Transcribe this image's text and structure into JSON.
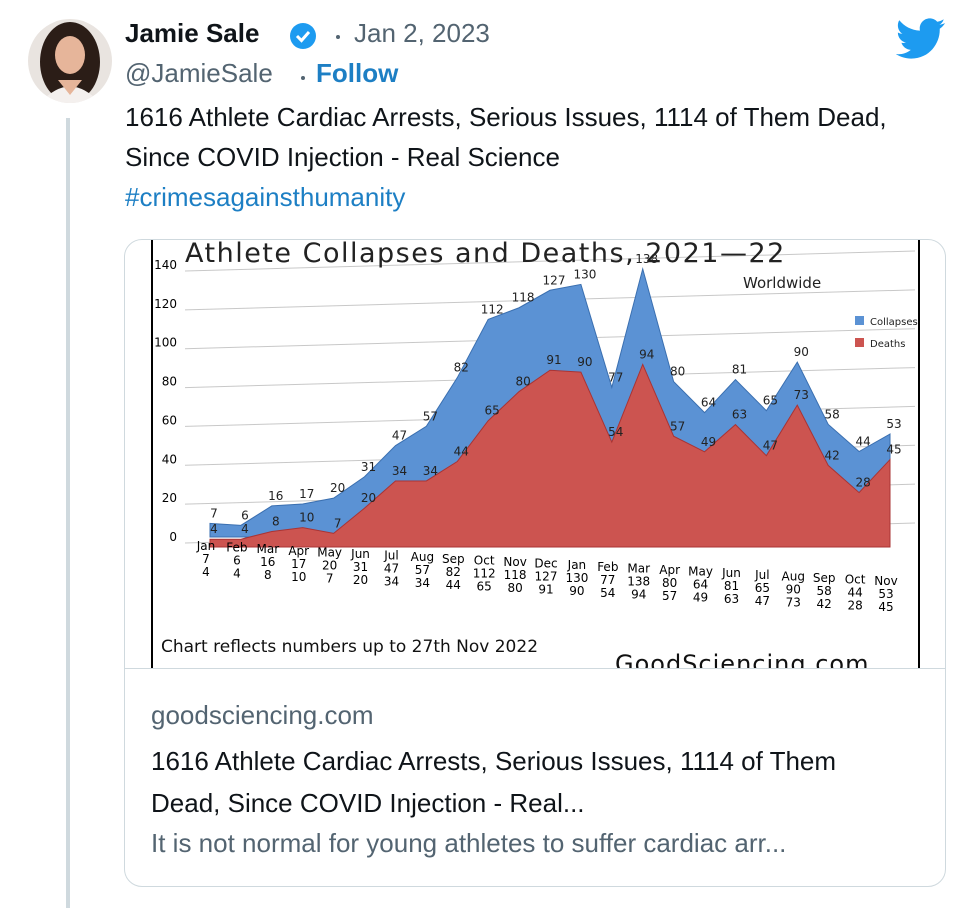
{
  "tweet": {
    "author": "Jamie Sale",
    "date": "Jan 2, 2023",
    "handle": "@JamieSale",
    "follow": "Follow",
    "text": "1616 Athlete Cardiac Arrests, Serious Issues, 1114 of Them Dead, Since COVID Injection - Real Science",
    "hashtag": "#crimesagainsthumanity"
  },
  "card": {
    "domain": "goodsciencing.com",
    "title": "1616 Athlete Cardiac Arrests, Serious Issues, 1114 of Them Dead, Since COVID Injection - Real...",
    "description": "It is not normal for young athletes to suffer cardiac arr..."
  },
  "chart_data": {
    "type": "area",
    "title": "Athlete Collapses and Deaths, 2021—22",
    "subtitle": "Worldwide",
    "note": "Chart reflects numbers up to 27th Nov 2022",
    "source": "GoodSciencing.com",
    "categories": [
      "Jan",
      "Feb",
      "Mar",
      "Apr",
      "May",
      "Jun",
      "Jul",
      "Aug",
      "Sep",
      "Oct",
      "Nov",
      "Dec",
      "Jan",
      "Feb",
      "Mar",
      "Apr",
      "May",
      "Jun",
      "Jul",
      "Aug",
      "Sep",
      "Oct",
      "Nov"
    ],
    "series": [
      {
        "name": "Collapses",
        "color": "#5b92d4",
        "values": [
          7,
          6,
          16,
          17,
          20,
          31,
          47,
          57,
          82,
          112,
          118,
          127,
          130,
          77,
          138,
          80,
          64,
          81,
          65,
          90,
          58,
          44,
          53
        ]
      },
      {
        "name": "Deaths",
        "color": "#cc5450",
        "values": [
          4,
          4,
          8,
          10,
          7,
          20,
          34,
          34,
          44,
          65,
          80,
          91,
          90,
          54,
          94,
          57,
          49,
          63,
          47,
          73,
          42,
          28,
          45
        ]
      }
    ],
    "ylim": [
      0,
      140
    ],
    "yticks": [
      0,
      20,
      40,
      60,
      80,
      100,
      120,
      140
    ],
    "grid": true,
    "legend": "upper right"
  }
}
